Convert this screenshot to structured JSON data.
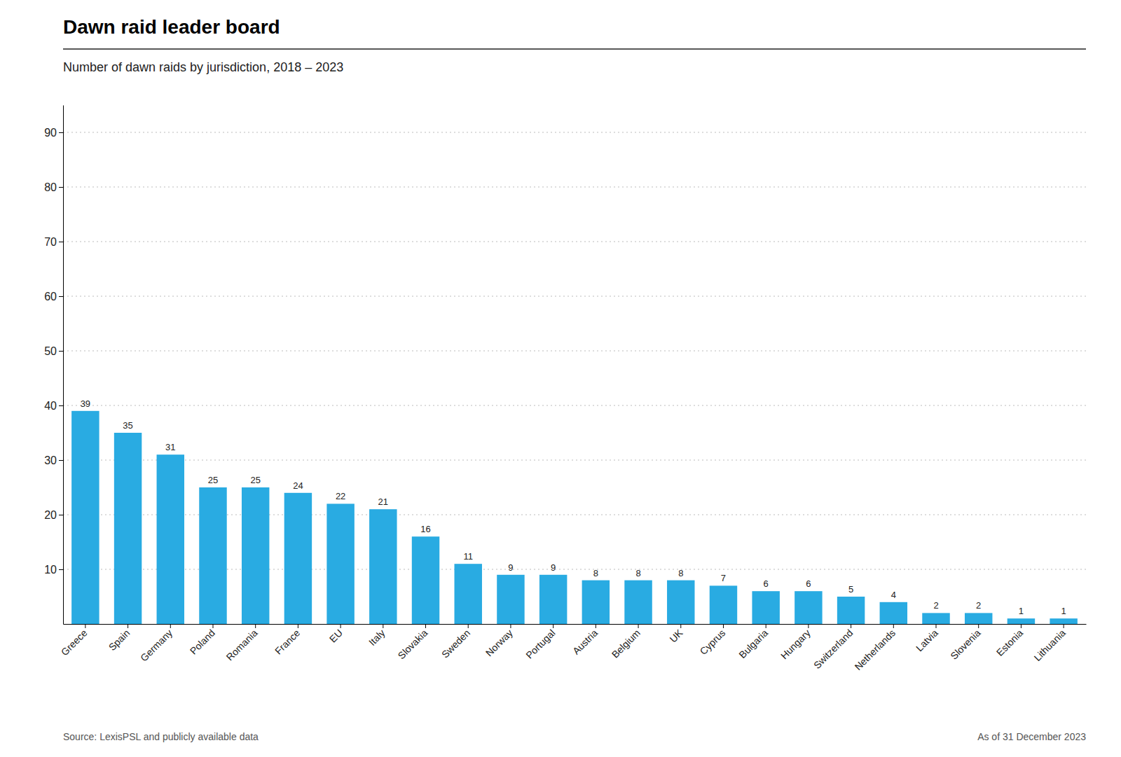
{
  "chart_data": {
    "type": "bar",
    "title": "Dawn raid leader board",
    "subtitle": "Number of dawn raids by jurisdiction, 2018 – 2023",
    "annotations": [
      "Source: LexisPSL and publicly available data",
      "As of 31 December 2023"
    ],
    "categories": [
      "Greece",
      "Spain",
      "Germany",
      "Poland",
      "Romania",
      "France",
      "EU",
      "Italy",
      "Slovakia",
      "Sweden",
      "Norway",
      "Portugal",
      "Austria",
      "Belgium",
      "UK",
      "Cyprus",
      "Bulgaria",
      "Hungary",
      "Switzerland",
      "Netherlands",
      "Latvia",
      "Slovenia",
      "Estonia",
      "Lithuania"
    ],
    "values": [
      39,
      35,
      31,
      25,
      25,
      24,
      22,
      21,
      16,
      11,
      9,
      9,
      8,
      8,
      8,
      7,
      6,
      6,
      5,
      4,
      2,
      2,
      1,
      1
    ],
    "color": "#29ABE2",
    "ylim": [
      0,
      95
    ],
    "yticks": [
      10,
      20,
      30,
      40,
      50,
      60,
      70,
      80,
      90
    ],
    "grid": true,
    "data_labels": true
  }
}
